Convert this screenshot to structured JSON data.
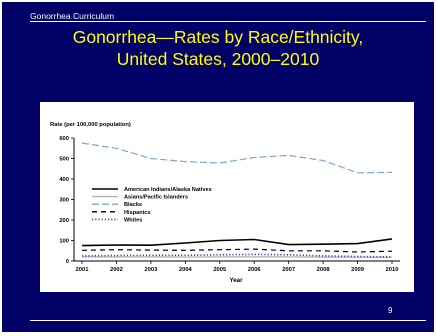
{
  "header": {
    "text": "Gonorrhea Curriculum"
  },
  "title": {
    "line1": "Gonorrhea—Rates by Race/Ethnicity,",
    "line2": "United States, 2000–2010"
  },
  "page_number": "9",
  "chart_data": {
    "type": "line",
    "ylabel": "Rate (per 100,000 population)",
    "xlabel": "Year",
    "ylim": [
      0,
      600
    ],
    "yticks": [
      0,
      100,
      200,
      300,
      400,
      500,
      600
    ],
    "x": [
      "2001",
      "2002",
      "2003",
      "2004",
      "2005",
      "2006",
      "2007",
      "2008",
      "2009",
      "2010"
    ],
    "grid": false,
    "legend_position": "center-left",
    "series": [
      {
        "name": "American Indians/Alaska Natives",
        "values": [
          75,
          78,
          77,
          88,
          100,
          105,
          80,
          82,
          85,
          108
        ],
        "color": "#000000",
        "dash": "solid"
      },
      {
        "name": "Asians/Pacific Islanders",
        "values": [
          20,
          20,
          20,
          19,
          20,
          20,
          20,
          19,
          18,
          18
        ],
        "color": "#b0b0b0",
        "dash": "solid"
      },
      {
        "name": "Blacks",
        "values": [
          575,
          550,
          500,
          485,
          478,
          505,
          515,
          490,
          430,
          432
        ],
        "color": "#7fa6cc",
        "dash": "longdash"
      },
      {
        "name": "Hispanics",
        "values": [
          52,
          55,
          53,
          52,
          55,
          58,
          50,
          50,
          44,
          48
        ],
        "color": "#000000",
        "dash": "dash"
      },
      {
        "name": "Whites",
        "values": [
          25,
          27,
          28,
          28,
          30,
          32,
          30,
          25,
          22,
          20
        ],
        "color": "#1f4faa",
        "dash": "dot"
      }
    ]
  }
}
